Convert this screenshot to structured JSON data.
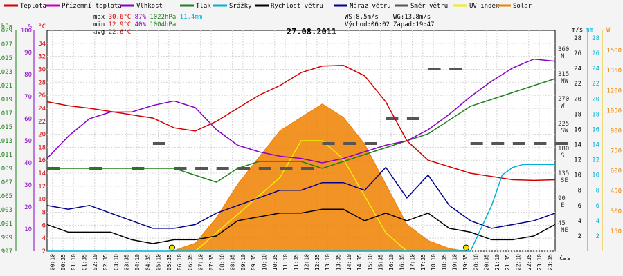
{
  "chart_data": {
    "type": "line",
    "title": "27.08.2011",
    "legend": [
      {
        "name": "Teplota",
        "color": "#d40000"
      },
      {
        "name": "Přízemní teplota",
        "color": "#c000c0"
      },
      {
        "name": "Vlhkost",
        "color": "#8a00c8"
      },
      {
        "name": "Tlak",
        "color": "#208020"
      },
      {
        "name": "Srážky",
        "color": "#00b0d8"
      },
      {
        "name": "Rychlost větru",
        "color": "#000000"
      },
      {
        "name": "Náraz větru",
        "color": "#00008c"
      },
      {
        "name": "Směr větru",
        "color": "#555555"
      },
      {
        "name": "UV index",
        "color": "#f0f000"
      },
      {
        "name": "Solar",
        "color": "#f08000"
      }
    ],
    "stats": {
      "max": {
        "label": "max",
        "temp": "30.6°C",
        "hum": "87%",
        "press": "1022hPa",
        "rain": "11.4mm"
      },
      "min": {
        "label": "min",
        "temp": "12.9°C",
        "hum": "40%",
        "press": "1004hPa"
      },
      "avg": {
        "label": "avg",
        "temp": "22.6°C"
      },
      "ws": "WS:8.5m/s",
      "wg": "WG:13.8m/s",
      "sunrise": "Východ:06:02",
      "sunset": "Západ:19:47"
    },
    "axes": {
      "pressure": {
        "unit": "hPa",
        "min": 997,
        "max": 1029,
        "ticks": [
          997,
          999,
          1001,
          1003,
          1005,
          1007,
          1009,
          1011,
          1013,
          1015,
          1017,
          1019,
          1021,
          1023,
          1025,
          1027,
          1029
        ]
      },
      "humidity": {
        "unit": "%",
        "min": 0,
        "max": 100,
        "ticks": [
          10,
          20,
          30,
          40,
          50,
          60,
          70,
          80,
          90,
          100
        ]
      },
      "temperature": {
        "unit": "°C",
        "min": 2,
        "max": 36,
        "ticks": [
          2,
          4,
          6,
          8,
          10,
          12,
          14,
          16,
          18,
          20,
          22,
          24,
          26,
          28,
          30,
          32,
          34
        ]
      },
      "direction": {
        "unit": "",
        "ticks": [
          {
            "v": 45,
            "dir": "NE"
          },
          {
            "v": 90,
            "dir": "E"
          },
          {
            "v": 135,
            "dir": "SE"
          },
          {
            "v": 180,
            "dir": "S"
          },
          {
            "v": 225,
            "dir": "SW"
          },
          {
            "v": 270,
            "dir": "W"
          },
          {
            "v": 315,
            "dir": "NW"
          },
          {
            "v": 360,
            "dir": "N"
          }
        ]
      },
      "wind": {
        "unit": "m/s",
        "ticks": [
          2,
          4,
          6,
          8,
          10,
          12,
          14,
          16,
          18,
          20,
          22,
          24,
          26,
          28
        ]
      },
      "rain": {
        "unit": "mm",
        "ticks": [
          2,
          4,
          6,
          8,
          10,
          12,
          14,
          16,
          18,
          20,
          22,
          24,
          26,
          28
        ]
      },
      "solar": {
        "unit": "W",
        "ticks": [
          150,
          300,
          450,
          600,
          750,
          900,
          1050,
          1200,
          1350,
          1500
        ]
      },
      "x_unit": "čas",
      "x_ticks": [
        "00:10",
        "00:35",
        "01:10",
        "01:35",
        "02:10",
        "02:35",
        "03:10",
        "03:35",
        "04:10",
        "04:35",
        "05:10",
        "05:35",
        "06:10",
        "06:35",
        "07:10",
        "07:35",
        "08:10",
        "08:35",
        "09:10",
        "09:35",
        "10:10",
        "10:35",
        "11:10",
        "11:35",
        "12:10",
        "12:35",
        "13:10",
        "13:35",
        "14:10",
        "14:35",
        "15:10",
        "15:35",
        "16:10",
        "16:35",
        "17:10",
        "17:35",
        "18:10",
        "18:35",
        "19:10",
        "19:35",
        "20:10",
        "20:35",
        "21:10",
        "21:35",
        "22:10",
        "22:35",
        "23:10",
        "23:35"
      ]
    },
    "series": {
      "temperature": {
        "name": "Teplota",
        "x_hours": [
          0,
          1,
          2,
          3,
          4,
          5,
          6,
          7,
          8,
          9,
          10,
          11,
          12,
          13,
          14,
          15,
          16,
          17,
          18,
          19,
          20,
          21,
          22,
          23,
          24
        ],
        "values": [
          25,
          24.4,
          24,
          23.5,
          23,
          22.5,
          21,
          20.5,
          22,
          24,
          26,
          27.5,
          29.5,
          30.5,
          30.6,
          29,
          25,
          19,
          16,
          15,
          14,
          13.5,
          13,
          12.9,
          13
        ]
      },
      "humidity": {
        "name": "Vlhkost",
        "x_hours": [
          0,
          1,
          2,
          3,
          4,
          5,
          6,
          7,
          8,
          9,
          10,
          11,
          12,
          13,
          14,
          15,
          16,
          17,
          18,
          19,
          20,
          21,
          22,
          23,
          24
        ],
        "values": [
          42,
          52,
          60,
          63,
          63,
          66,
          68,
          65,
          55,
          48,
          45,
          43,
          42,
          40,
          42,
          45,
          48,
          50,
          55,
          62,
          70,
          77,
          83,
          87,
          86
        ]
      },
      "pressure": {
        "name": "Tlak",
        "x_hours": [
          0,
          1,
          2,
          3,
          4,
          5,
          6,
          7,
          8,
          9,
          10,
          11,
          12,
          13,
          14,
          15,
          16,
          17,
          18,
          19,
          20,
          21,
          22,
          23,
          24
        ],
        "values": [
          1009,
          1009,
          1009,
          1009,
          1009,
          1009,
          1009,
          1008,
          1007,
          1009,
          1010,
          1010,
          1010,
          1009,
          1010,
          1011,
          1012,
          1013,
          1014,
          1016,
          1018,
          1019,
          1020,
          1021,
          1022
        ]
      },
      "rain": {
        "name": "Srážky",
        "x_hours": [
          0,
          19,
          20,
          20.5,
          21,
          21.5,
          22,
          22.5,
          23,
          24
        ],
        "values": [
          0,
          0,
          0,
          3,
          6,
          10,
          11,
          11.4,
          11.4,
          11.4
        ]
      },
      "wind_speed": {
        "name": "Rychlost větru",
        "x_hours": [
          0,
          1,
          2,
          3,
          4,
          5,
          6,
          7,
          8,
          9,
          10,
          11,
          12,
          13,
          14,
          15,
          16,
          17,
          18,
          19,
          20,
          21,
          22,
          23,
          24
        ],
        "values": [
          3.5,
          2.5,
          2.5,
          2.5,
          1.5,
          1,
          1.5,
          1.5,
          2,
          4,
          4.5,
          5,
          5,
          5.5,
          5.5,
          4,
          5,
          4,
          5,
          3,
          2.5,
          1.5,
          1.5,
          2,
          3.5
        ]
      },
      "wind_gust": {
        "name": "Náraz větru",
        "x_hours": [
          0,
          1,
          2,
          3,
          4,
          5,
          6,
          7,
          8,
          9,
          10,
          11,
          12,
          13,
          14,
          15,
          16,
          17,
          18,
          19,
          20,
          21,
          22,
          23,
          24
        ],
        "values": [
          6,
          5.5,
          6,
          5,
          4,
          3,
          3,
          3.5,
          5,
          6,
          7,
          8,
          8,
          9,
          9,
          8,
          11,
          7,
          10,
          6,
          4,
          3,
          3.5,
          4,
          5
        ]
      },
      "wind_direction": {
        "name": "Směr větru",
        "x_hours": [
          0,
          2,
          4,
          5,
          6,
          7,
          8,
          9,
          10,
          11,
          12,
          13,
          14,
          15,
          16,
          17,
          18,
          19,
          20,
          21,
          22,
          23,
          24
        ],
        "values": [
          150,
          150,
          150,
          195,
          150,
          150,
          150,
          150,
          150,
          150,
          150,
          195,
          195,
          195,
          240,
          240,
          330,
          330,
          195,
          195,
          195,
          195,
          195
        ]
      },
      "solar": {
        "name": "Solar",
        "x_hours": [
          5.9,
          7,
          8,
          9,
          10,
          11,
          12,
          13,
          14,
          15,
          16,
          17,
          18,
          19,
          19.8
        ],
        "values": [
          0,
          60,
          250,
          500,
          700,
          900,
          1000,
          1100,
          1000,
          800,
          500,
          200,
          80,
          20,
          0
        ]
      },
      "uv_index": {
        "name": "UV index",
        "x_hours": [
          7,
          8,
          9,
          10,
          11,
          12,
          13,
          14,
          15,
          16,
          17
        ],
        "values": [
          0,
          1,
          2,
          3,
          4,
          6,
          6,
          5,
          3,
          1,
          0
        ]
      }
    }
  }
}
